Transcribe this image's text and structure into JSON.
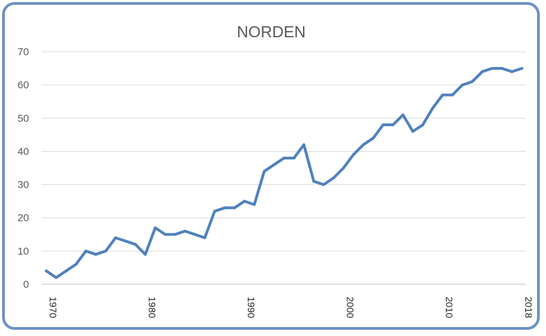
{
  "chart_data": {
    "type": "line",
    "title": "NORDEN",
    "xlabel": "",
    "ylabel": "",
    "xlim": [
      1970,
      2018
    ],
    "ylim": [
      0,
      70
    ],
    "yticks": [
      "0",
      "10",
      "20",
      "30",
      "40",
      "50",
      "60",
      "70"
    ],
    "xticks": [
      "1970",
      "1980",
      "1990",
      "2000",
      "2010",
      "2018"
    ],
    "grid": "horizontal",
    "legend": "none",
    "line_color": "#4f81bd",
    "x": [
      1970,
      1971,
      1972,
      1973,
      1974,
      1975,
      1976,
      1977,
      1978,
      1979,
      1980,
      1981,
      1982,
      1983,
      1984,
      1985,
      1986,
      1987,
      1988,
      1989,
      1990,
      1991,
      1992,
      1993,
      1994,
      1995,
      1996,
      1997,
      1998,
      1999,
      2000,
      2001,
      2002,
      2003,
      2004,
      2005,
      2006,
      2007,
      2008,
      2009,
      2010,
      2011,
      2012,
      2013,
      2014,
      2015,
      2016,
      2017,
      2018
    ],
    "values": [
      4,
      2,
      4,
      6,
      10,
      9,
      10,
      14,
      13,
      12,
      9,
      17,
      15,
      15,
      16,
      15,
      14,
      22,
      23,
      23,
      25,
      24,
      34,
      36,
      38,
      38,
      42,
      31,
      30,
      32,
      35,
      39,
      42,
      44,
      48,
      48,
      51,
      46,
      48,
      53,
      57,
      57,
      60,
      61,
      64,
      65,
      65,
      64,
      65
    ]
  }
}
